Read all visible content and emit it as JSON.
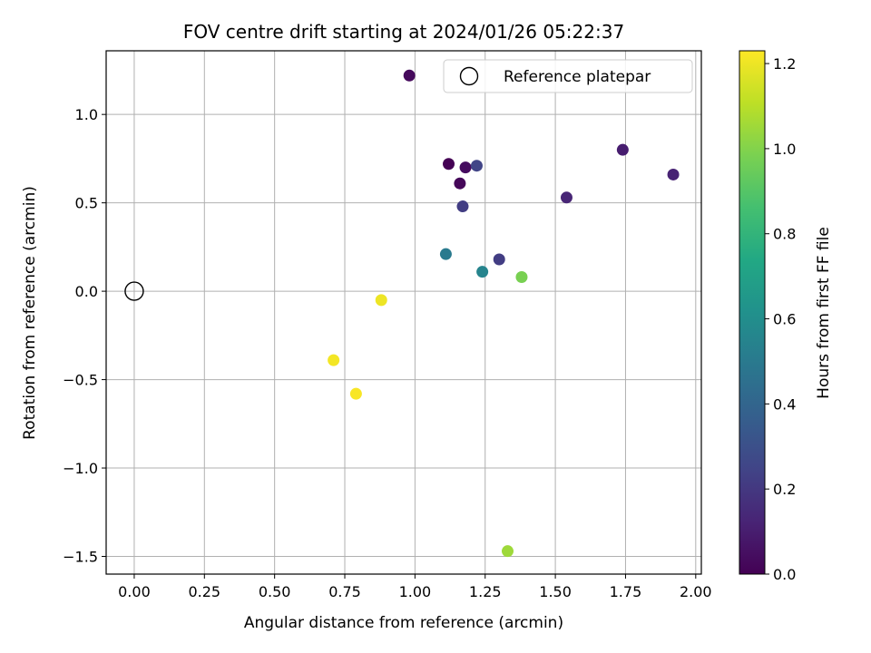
{
  "chart_data": {
    "type": "scatter",
    "title": "FOV centre drift starting at 2024/01/26 05:22:37",
    "xlabel": "Angular distance from reference (arcmin)",
    "ylabel": "Rotation from reference (arcmin)",
    "xlim": [
      -0.1,
      2.02
    ],
    "ylim": [
      -1.6,
      1.36
    ],
    "xticks": [
      0.0,
      0.25,
      0.5,
      0.75,
      1.0,
      1.25,
      1.5,
      1.75,
      2.0
    ],
    "xtick_labels": [
      "0.00",
      "0.25",
      "0.50",
      "0.75",
      "1.00",
      "1.25",
      "1.50",
      "1.75",
      "2.00"
    ],
    "yticks": [
      -1.5,
      -1.0,
      -0.5,
      0.0,
      0.5,
      1.0
    ],
    "ytick_labels": [
      "−1.5",
      "−1.0",
      "−0.5",
      "0.0",
      "0.5",
      "1.0"
    ],
    "grid": true,
    "legend": {
      "placement": "top-right",
      "label": "Reference platepar"
    },
    "reference_point": {
      "x": 0.0,
      "y": 0.0
    },
    "colormap": "viridis",
    "colorbar": {
      "label": "Hours from first FF file",
      "range": [
        0.0,
        1.23
      ],
      "ticks": [
        0.0,
        0.2,
        0.4,
        0.6,
        0.8,
        1.0,
        1.2
      ],
      "tick_labels": [
        "0.0",
        "0.2",
        "0.4",
        "0.6",
        "0.8",
        "1.0",
        "1.2"
      ]
    },
    "points": [
      {
        "x": 0.98,
        "y": 1.22,
        "hours": 0.03
      },
      {
        "x": 1.12,
        "y": 0.72,
        "hours": 0.0
      },
      {
        "x": 1.16,
        "y": 0.61,
        "hours": 0.02
      },
      {
        "x": 1.18,
        "y": 0.7,
        "hours": 0.04
      },
      {
        "x": 1.22,
        "y": 0.71,
        "hours": 0.25
      },
      {
        "x": 1.17,
        "y": 0.48,
        "hours": 0.22
      },
      {
        "x": 1.54,
        "y": 0.53,
        "hours": 0.13
      },
      {
        "x": 1.74,
        "y": 0.8,
        "hours": 0.1
      },
      {
        "x": 1.92,
        "y": 0.66,
        "hours": 0.12
      },
      {
        "x": 1.3,
        "y": 0.18,
        "hours": 0.22
      },
      {
        "x": 1.11,
        "y": 0.21,
        "hours": 0.5
      },
      {
        "x": 1.24,
        "y": 0.11,
        "hours": 0.55
      },
      {
        "x": 1.38,
        "y": 0.08,
        "hours": 0.98
      },
      {
        "x": 0.88,
        "y": -0.05,
        "hours": 1.2
      },
      {
        "x": 0.71,
        "y": -0.39,
        "hours": 1.21
      },
      {
        "x": 0.79,
        "y": -0.58,
        "hours": 1.22
      },
      {
        "x": 1.33,
        "y": -1.47,
        "hours": 1.05
      }
    ]
  }
}
